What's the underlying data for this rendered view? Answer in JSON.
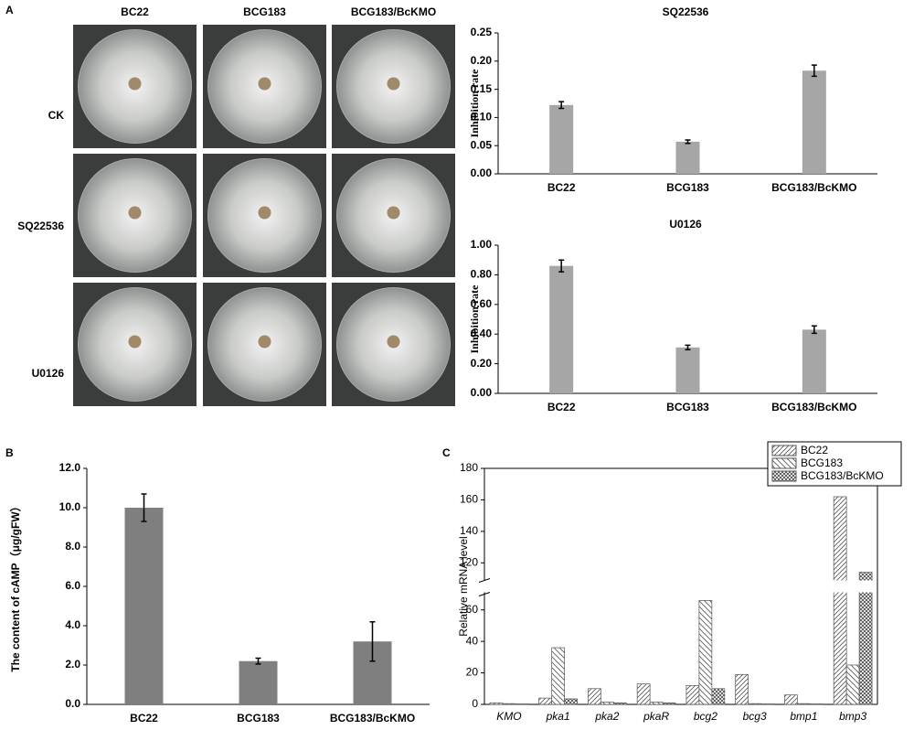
{
  "figure": {
    "panel_labels": [
      "A",
      "B",
      "C"
    ],
    "plates": {
      "columns": [
        "BC22",
        "BCG183",
        "BCG183/BcKMO"
      ],
      "rows": [
        "CK",
        "SQ22536",
        "U0126"
      ]
    }
  },
  "chart_data": [
    {
      "type": "bar",
      "title": "SQ22536",
      "ylabel": "Inhibition rate",
      "color": "#a6a6a6",
      "categories": [
        "BC22",
        "BCG183",
        "BCG183/BcKMO"
      ],
      "values": [
        0.122,
        0.057,
        0.183
      ],
      "errors": [
        0.006,
        0.003,
        0.01
      ],
      "ylim": [
        0,
        0.25
      ],
      "yticks": [
        {
          "value": 0,
          "label": "0.00"
        },
        {
          "value": 0.05,
          "label": "0.05"
        },
        {
          "value": 0.1,
          "label": "0.10"
        },
        {
          "value": 0.15,
          "label": "0.15"
        },
        {
          "value": 0.2,
          "label": "0.20"
        },
        {
          "value": 0.25,
          "label": "0.25"
        }
      ]
    },
    {
      "type": "bar",
      "title": "U0126",
      "ylabel": "Inhibition rate",
      "color": "#a6a6a6",
      "categories": [
        "BC22",
        "BCG183",
        "BCG183/BcKMO"
      ],
      "values": [
        0.86,
        0.31,
        0.43
      ],
      "errors": [
        0.04,
        0.015,
        0.025
      ],
      "ylim": [
        0,
        1
      ],
      "yticks": [
        {
          "value": 0,
          "label": "0.00"
        },
        {
          "value": 0.2,
          "label": "0.20"
        },
        {
          "value": 0.4,
          "label": "0.40"
        },
        {
          "value": 0.6,
          "label": "0.60"
        },
        {
          "value": 0.8,
          "label": "0.80"
        },
        {
          "value": 1,
          "label": "1.00"
        }
      ]
    },
    {
      "type": "bar",
      "ylabel": "The content of cAMP（μg/gFW）",
      "color": "#7f7f7f",
      "categories": [
        "BC22",
        "BCG183",
        "BCG183/BcKMO"
      ],
      "values": [
        10.0,
        2.2,
        3.2
      ],
      "errors": [
        0.7,
        0.15,
        1.0
      ],
      "ylim": [
        0,
        12
      ],
      "yticks": [
        {
          "value": 0,
          "label": "0.0"
        },
        {
          "value": 2,
          "label": "2.0"
        },
        {
          "value": 4,
          "label": "4.0"
        },
        {
          "value": 6,
          "label": "6.0"
        },
        {
          "value": 8,
          "label": "8.0"
        },
        {
          "value": 10,
          "label": "10.0"
        },
        {
          "value": 12,
          "label": "12.0"
        }
      ]
    },
    {
      "type": "grouped_bar",
      "ylabel": "Relative mRNA level",
      "legend": "upper right",
      "categories": [
        "KMO",
        "pka1",
        "pka2",
        "pkaR",
        "bcg2",
        "bcg3",
        "bmp1",
        "bmp3"
      ],
      "series": [
        {
          "name": "BC22",
          "hatch": "forward",
          "values": [
            1,
            4,
            10,
            13,
            12,
            19,
            6,
            162
          ]
        },
        {
          "name": "BCG183",
          "hatch": "backward",
          "values": [
            0.5,
            36,
            1.5,
            1.5,
            66,
            0.5,
            0.5,
            25
          ]
        },
        {
          "name": "BCG183/BcKMO",
          "hatch": "cross",
          "values": [
            0.3,
            3.5,
            1,
            1,
            10,
            0.3,
            0.3,
            114
          ]
        }
      ],
      "ylim": [
        0,
        180
      ],
      "ybreak": [
        70,
        110
      ],
      "yticks": [
        0,
        20,
        40,
        60,
        120,
        140,
        160,
        180
      ]
    }
  ]
}
